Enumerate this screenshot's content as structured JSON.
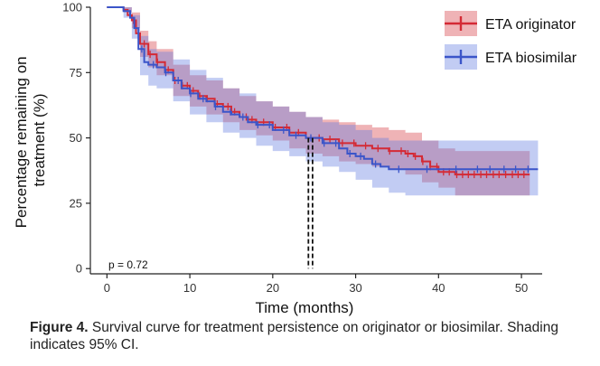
{
  "chart_data": {
    "type": "line",
    "subtype": "kaplan-meier-step",
    "xlabel": "Time (months)",
    "ylabel_lines": [
      "Percentage remaining on",
      "treatment (%)"
    ],
    "xlim": [
      -2,
      52.5
    ],
    "ylim": [
      -2,
      100
    ],
    "x_ticks": [
      0,
      10,
      20,
      30,
      40,
      50
    ],
    "y_ticks": [
      0,
      25,
      50,
      75,
      100
    ],
    "annotation": "p = 0.72",
    "median_lines": [
      24.3,
      24.8
    ],
    "legend_position": "top-right",
    "series": [
      {
        "name": "ETA originator",
        "color": "#d42a35",
        "ci_color": "#d94a52",
        "points": [
          [
            0,
            100
          ],
          [
            1,
            100
          ],
          [
            2,
            99
          ],
          [
            2.5,
            97
          ],
          [
            3,
            95
          ],
          [
            3.5,
            90
          ],
          [
            4,
            86
          ],
          [
            5,
            82
          ],
          [
            6,
            79
          ],
          [
            7,
            76
          ],
          [
            8,
            72
          ],
          [
            9,
            70
          ],
          [
            10,
            68
          ],
          [
            11,
            66
          ],
          [
            12,
            65
          ],
          [
            13,
            63
          ],
          [
            14,
            62
          ],
          [
            15,
            60
          ],
          [
            16,
            58
          ],
          [
            17,
            57
          ],
          [
            18,
            56
          ],
          [
            20,
            54
          ],
          [
            22,
            52
          ],
          [
            24,
            50
          ],
          [
            26,
            49.5
          ],
          [
            28,
            48
          ],
          [
            30,
            47
          ],
          [
            32,
            46
          ],
          [
            34,
            45
          ],
          [
            36,
            44
          ],
          [
            37,
            43
          ],
          [
            38,
            41
          ],
          [
            39,
            39
          ],
          [
            40,
            37
          ],
          [
            42,
            36
          ],
          [
            45,
            36
          ],
          [
            50,
            36
          ],
          [
            51,
            36
          ]
        ],
        "ci_upper": [
          [
            0,
            100
          ],
          [
            1,
            100
          ],
          [
            2,
            100
          ],
          [
            3,
            98
          ],
          [
            4,
            91
          ],
          [
            5,
            87
          ],
          [
            6,
            84
          ],
          [
            8,
            78
          ],
          [
            10,
            74
          ],
          [
            12,
            72
          ],
          [
            14,
            69
          ],
          [
            16,
            66
          ],
          [
            18,
            64
          ],
          [
            20,
            62
          ],
          [
            22,
            60
          ],
          [
            24,
            58
          ],
          [
            26,
            57
          ],
          [
            28,
            56
          ],
          [
            30,
            55
          ],
          [
            32,
            54
          ],
          [
            34,
            53
          ],
          [
            36,
            52
          ],
          [
            38,
            49
          ],
          [
            40,
            46
          ],
          [
            42,
            45
          ],
          [
            45,
            45
          ],
          [
            51,
            45
          ]
        ],
        "ci_lower": [
          [
            0,
            100
          ],
          [
            1,
            100
          ],
          [
            2,
            98
          ],
          [
            3,
            92
          ],
          [
            4,
            81
          ],
          [
            5,
            77
          ],
          [
            6,
            74
          ],
          [
            8,
            66
          ],
          [
            10,
            62
          ],
          [
            12,
            59
          ],
          [
            14,
            56
          ],
          [
            16,
            53
          ],
          [
            18,
            51
          ],
          [
            20,
            49
          ],
          [
            22,
            46
          ],
          [
            24,
            44
          ],
          [
            26,
            43
          ],
          [
            28,
            41
          ],
          [
            30,
            40
          ],
          [
            32,
            39
          ],
          [
            34,
            38
          ],
          [
            36,
            36
          ],
          [
            38,
            33
          ],
          [
            40,
            31
          ],
          [
            42,
            28
          ],
          [
            45,
            28
          ],
          [
            51,
            28
          ]
        ],
        "censor_x": [
          3.2,
          3.8,
          4.5,
          5.2,
          6.1,
          7.4,
          8.2,
          9.1,
          9.7,
          10.4,
          11.2,
          12.1,
          13.3,
          14.6,
          15.4,
          16.8,
          17.5,
          18.9,
          20.3,
          21.7,
          23.1,
          25.6,
          26.9,
          28.4,
          29.8,
          31.2,
          32.7,
          34.1,
          35.5,
          36.3,
          37.2,
          38.1,
          39.0,
          39.8,
          40.6,
          41.3,
          42.2,
          42.9,
          43.6,
          44.3,
          45.1,
          45.8,
          46.6,
          47.3,
          48.1,
          48.9,
          49.6,
          50.3
        ]
      },
      {
        "name": "ETA biosimilar",
        "color": "#3b55c9",
        "ci_color": "#5f7ae0",
        "points": [
          [
            0,
            100
          ],
          [
            1,
            100
          ],
          [
            2,
            98.5
          ],
          [
            2.8,
            96
          ],
          [
            3.3,
            92
          ],
          [
            3.8,
            84
          ],
          [
            4.5,
            79
          ],
          [
            5,
            78
          ],
          [
            6,
            77
          ],
          [
            7,
            75
          ],
          [
            8,
            72
          ],
          [
            9,
            69
          ],
          [
            10,
            67
          ],
          [
            11,
            65
          ],
          [
            12,
            64
          ],
          [
            13,
            62
          ],
          [
            14,
            60
          ],
          [
            15,
            59
          ],
          [
            16,
            58
          ],
          [
            17,
            56
          ],
          [
            18,
            55
          ],
          [
            20,
            53
          ],
          [
            22,
            51
          ],
          [
            24,
            50
          ],
          [
            26,
            48
          ],
          [
            28,
            46
          ],
          [
            29,
            44
          ],
          [
            30,
            43
          ],
          [
            31,
            42
          ],
          [
            32,
            40
          ],
          [
            33,
            39
          ],
          [
            34,
            38
          ],
          [
            36,
            38
          ],
          [
            40,
            38
          ],
          [
            45,
            38
          ],
          [
            50,
            38
          ],
          [
            52,
            38
          ]
        ],
        "ci_upper": [
          [
            0,
            100
          ],
          [
            1,
            100
          ],
          [
            2,
            100
          ],
          [
            3,
            97
          ],
          [
            4,
            89
          ],
          [
            5,
            84
          ],
          [
            6,
            83
          ],
          [
            8,
            80
          ],
          [
            10,
            76
          ],
          [
            12,
            73
          ],
          [
            14,
            69
          ],
          [
            16,
            67
          ],
          [
            18,
            64
          ],
          [
            20,
            62
          ],
          [
            22,
            60
          ],
          [
            24,
            58
          ],
          [
            26,
            56
          ],
          [
            28,
            55
          ],
          [
            30,
            53
          ],
          [
            32,
            50
          ],
          [
            34,
            49
          ],
          [
            36,
            49
          ],
          [
            40,
            49
          ],
          [
            45,
            49
          ],
          [
            52,
            49
          ]
        ],
        "ci_lower": [
          [
            0,
            100
          ],
          [
            1,
            100
          ],
          [
            2,
            96
          ],
          [
            3,
            88
          ],
          [
            4,
            74
          ],
          [
            5,
            70
          ],
          [
            6,
            69
          ],
          [
            8,
            64
          ],
          [
            10,
            59
          ],
          [
            12,
            56
          ],
          [
            14,
            52
          ],
          [
            16,
            50
          ],
          [
            18,
            47
          ],
          [
            20,
            45
          ],
          [
            22,
            43
          ],
          [
            24,
            41
          ],
          [
            26,
            39
          ],
          [
            28,
            37
          ],
          [
            30,
            34
          ],
          [
            32,
            31
          ],
          [
            34,
            29
          ],
          [
            36,
            28
          ],
          [
            40,
            28
          ],
          [
            45,
            28
          ],
          [
            52,
            28
          ]
        ],
        "censor_x": [
          4.2,
          5.6,
          7.1,
          8.6,
          10.1,
          11.6,
          13.1,
          14.9,
          16.4,
          18.2,
          19.6,
          21.3,
          22.8,
          24.6,
          26.2,
          27.6,
          29.3,
          30.6,
          32.4,
          35.2,
          38.6,
          42.1,
          44.7,
          46.2,
          47.9,
          49.3,
          50.8
        ]
      }
    ]
  },
  "caption": {
    "label": "Figure 4.",
    "text": " Survival curve for treatment persistence on originator or biosimilar. Shading indicates 95% CI."
  }
}
